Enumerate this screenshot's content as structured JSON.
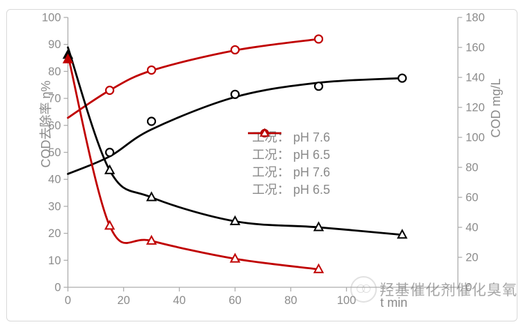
{
  "colors": {
    "series_black": "#000000",
    "series_red": "#C00000",
    "tick_text": "#8C8C8C",
    "axis_line": "#ADADAD",
    "legend_text": "#8A8A8A",
    "frame_border": "#D9D9D9"
  },
  "watermark": {
    "text": "羟基催化剂催化臭氧",
    "logo": "round-stamp-logo"
  },
  "chart_data": {
    "type": "scatter",
    "subtype": "scatter points with smooth trend lines, dual y-axes",
    "title": "",
    "xlabel": "t min",
    "ylabel_left": "COD去除率 η%",
    "ylabel_right": "COD mg/L",
    "xlim": [
      0,
      140
    ],
    "ylim_left": [
      0,
      100
    ],
    "ylim_right": [
      0,
      180
    ],
    "grid": false,
    "legend_position": "center-right",
    "x_ticks": [
      0,
      20,
      40,
      60,
      80,
      100
    ],
    "left_ticks": [
      100,
      90,
      80,
      70,
      60,
      50,
      40,
      30,
      20,
      10,
      0
    ],
    "right_ticks": [
      180,
      160,
      140,
      120,
      100,
      80,
      60,
      40,
      20,
      0
    ],
    "legend": [
      {
        "label": "工况： pH 7.6",
        "marker": "circle",
        "color": "#000000"
      },
      {
        "label": "工况： pH 6.5",
        "marker": "circle",
        "color": "#C00000"
      },
      {
        "label": "工况： pH 7.6",
        "marker": "line-triangle",
        "color": "#000000"
      },
      {
        "label": "工况： pH 6.5",
        "marker": "line-triangle",
        "color": "#C00000"
      }
    ],
    "series": [
      {
        "id": "removal-ph7.6",
        "name": "工况： pH 7.6 (COD去除率)",
        "axis": "left",
        "unit": "%",
        "color": "#000000",
        "marker": "circle",
        "points": {
          "x": [
            15,
            30,
            60,
            90,
            120
          ],
          "y": [
            50,
            61.5,
            71.5,
            74.5,
            77.5
          ]
        },
        "trend": {
          "x": [
            0,
            15,
            30,
            60,
            90,
            120
          ],
          "y": [
            42,
            48.5,
            58.5,
            70.5,
            75.8,
            77.5
          ]
        }
      },
      {
        "id": "removal-ph6.5",
        "name": "工况： pH 6.5 (COD去除率)",
        "axis": "left",
        "unit": "%",
        "color": "#C00000",
        "marker": "circle",
        "points": {
          "x": [
            15,
            30,
            60,
            90
          ],
          "y": [
            73,
            80.5,
            88,
            92
          ]
        },
        "trend": {
          "x": [
            0,
            15,
            30,
            60,
            90
          ],
          "y": [
            62.8,
            73,
            80.3,
            87.8,
            92
          ]
        }
      },
      {
        "id": "cod-ph7.6",
        "name": "工况： pH 7.6 (COD)",
        "axis": "right",
        "unit": "mg/L",
        "color": "#000000",
        "marker": "triangle",
        "points": {
          "x": [
            0,
            15,
            30,
            60,
            90,
            120
          ],
          "y": [
            155,
            78,
            60,
            44,
            40,
            35
          ]
        },
        "trend": {
          "x": [
            0,
            15,
            30,
            60,
            90,
            120
          ],
          "y": [
            160,
            78,
            60,
            44,
            40,
            35
          ]
        }
      },
      {
        "id": "cod-ph6.5",
        "name": "工况： pH 6.5 (COD)",
        "axis": "right",
        "unit": "mg/L",
        "color": "#C00000",
        "marker": "triangle",
        "points": {
          "x": [
            0,
            15,
            30,
            60,
            90
          ],
          "y": [
            152,
            41,
            31,
            19,
            12
          ]
        },
        "trend": {
          "x": [
            0,
            15,
            30,
            60,
            90
          ],
          "y": [
            155,
            41,
            31,
            19,
            12
          ]
        }
      }
    ]
  }
}
